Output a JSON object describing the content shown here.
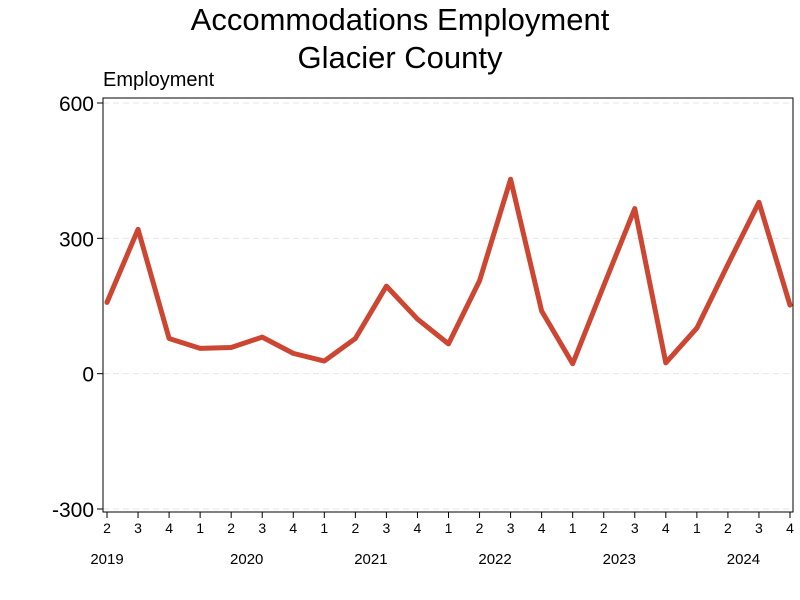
{
  "chart_data": {
    "type": "line",
    "title": [
      "Accommodations Employment",
      "Glacier County"
    ],
    "xlabel": "",
    "ylabel": "Employment",
    "ylim": [
      -300,
      600
    ],
    "yticks": [
      "600",
      "300",
      "0",
      "-300"
    ],
    "grid": true,
    "line_color": "#cc4631",
    "x": [
      {
        "quarter": "2",
        "year": "2019"
      },
      {
        "quarter": "3",
        "year": "2019"
      },
      {
        "quarter": "4",
        "year": "2019"
      },
      {
        "quarter": "1",
        "year": "2020"
      },
      {
        "quarter": "2",
        "year": "2020"
      },
      {
        "quarter": "3",
        "year": "2020"
      },
      {
        "quarter": "4",
        "year": "2020"
      },
      {
        "quarter": "1",
        "year": "2021"
      },
      {
        "quarter": "2",
        "year": "2021"
      },
      {
        "quarter": "3",
        "year": "2021"
      },
      {
        "quarter": "4",
        "year": "2021"
      },
      {
        "quarter": "1",
        "year": "2022"
      },
      {
        "quarter": "2",
        "year": "2022"
      },
      {
        "quarter": "3",
        "year": "2022"
      },
      {
        "quarter": "4",
        "year": "2022"
      },
      {
        "quarter": "1",
        "year": "2023"
      },
      {
        "quarter": "2",
        "year": "2023"
      },
      {
        "quarter": "3",
        "year": "2023"
      },
      {
        "quarter": "4",
        "year": "2023"
      },
      {
        "quarter": "1",
        "year": "2024"
      },
      {
        "quarter": "2",
        "year": "2024"
      },
      {
        "quarter": "3",
        "year": "2024"
      },
      {
        "quarter": "4",
        "year": "2024"
      }
    ],
    "year_labels": [
      "2019",
      "2020",
      "2021",
      "2022",
      "2023",
      "2024"
    ],
    "series": [
      {
        "values": [
          158,
          320,
          78,
          56,
          58,
          81,
          45,
          28,
          78,
          194,
          121,
          66,
          206,
          431,
          139,
          22,
          195,
          366,
          24,
          101,
          242,
          380,
          152
        ]
      }
    ]
  }
}
